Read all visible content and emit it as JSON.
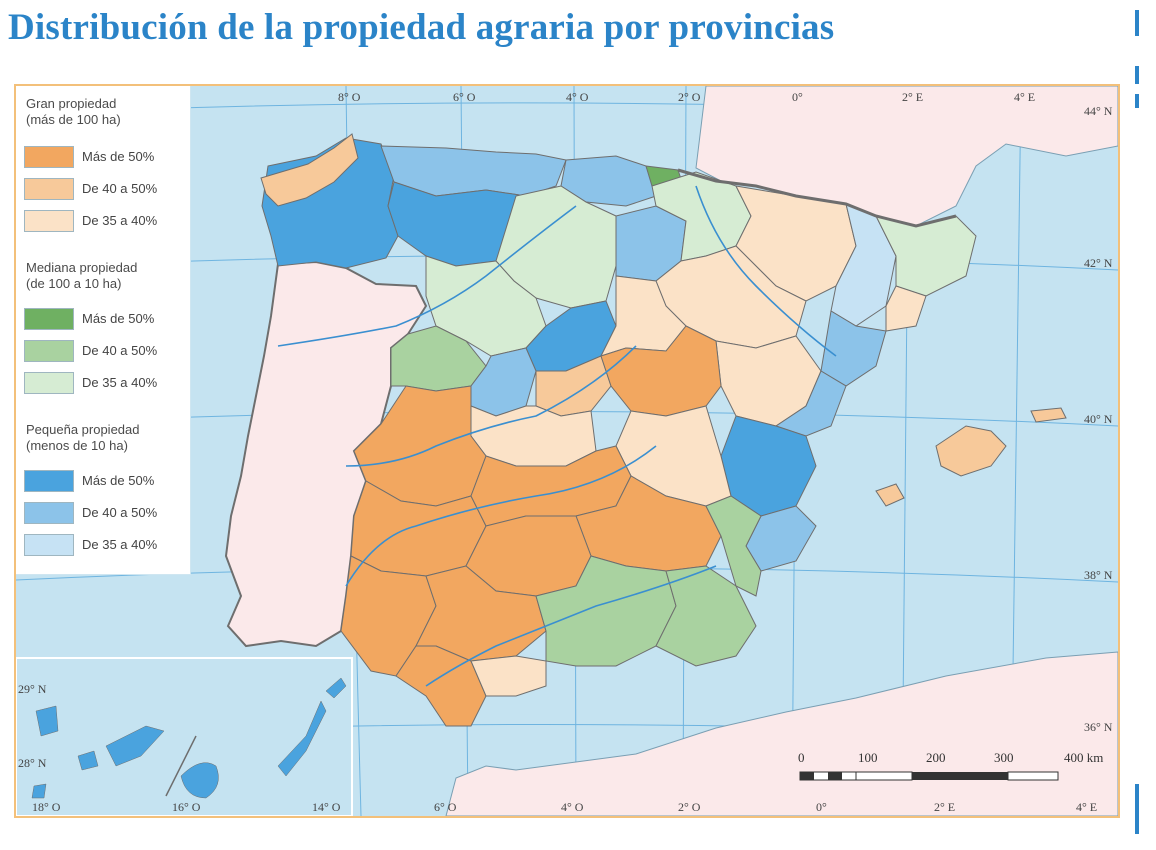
{
  "title": "Distribución de la propiedad agraria por provincias",
  "colors": {
    "sea": "#c5e3f1",
    "land_other": "#fbe9ea",
    "gran_50": "#f2a760",
    "gran_40": "#f7c99a",
    "gran_35": "#fbe2c7",
    "mediana_50": "#6fb062",
    "mediana_40": "#a9d2a0",
    "mediana_35": "#d6ecd3",
    "pequena_50": "#4aa3de",
    "pequena_40": "#8cc3e9",
    "pequena_35": "#c6e2f4",
    "river": "#3a8fd0",
    "border": "#6e6e6e"
  },
  "legend": {
    "groups": [
      {
        "title": "Gran propiedad",
        "subtitle": "(más de 100 ha)",
        "items": [
          {
            "label": "Más de 50%",
            "color": "#f2a760"
          },
          {
            "label": "De 40 a 50%",
            "color": "#f7c99a"
          },
          {
            "label": "De 35 a 40%",
            "color": "#fbe2c7"
          }
        ]
      },
      {
        "title": "Mediana propiedad",
        "subtitle": "(de 100 a 10 ha)",
        "items": [
          {
            "label": "Más de 50%",
            "color": "#6fb062"
          },
          {
            "label": "De 40 a 50%",
            "color": "#a9d2a0"
          },
          {
            "label": "De 35 a 40%",
            "color": "#d6ecd3"
          }
        ]
      },
      {
        "title": "Pequeña propiedad",
        "subtitle": "(menos de 10 ha)",
        "items": [
          {
            "label": "Más de 50%",
            "color": "#4aa3de"
          },
          {
            "label": "De 40 a 50%",
            "color": "#8cc3e9"
          },
          {
            "label": "De 35 a 40%",
            "color": "#c6e2f4"
          }
        ]
      }
    ]
  },
  "coords": {
    "top_longitudes": [
      "8° O",
      "6° O",
      "4° O",
      "2° O",
      "0°",
      "2° E",
      "4° E"
    ],
    "right_latitudes": [
      "44° N",
      "42° N",
      "40° N",
      "38° N",
      "36° N"
    ],
    "bottom_longitudes": [
      "6° O",
      "4° O",
      "2° O",
      "0°",
      "2° E",
      "4° E"
    ],
    "inset_latitudes": [
      "29° N",
      "28° N"
    ],
    "inset_longitudes": [
      "18° O",
      "16° O",
      "14° O"
    ]
  },
  "scale": {
    "labels": [
      "0",
      "100",
      "200",
      "300",
      "400 km"
    ]
  }
}
